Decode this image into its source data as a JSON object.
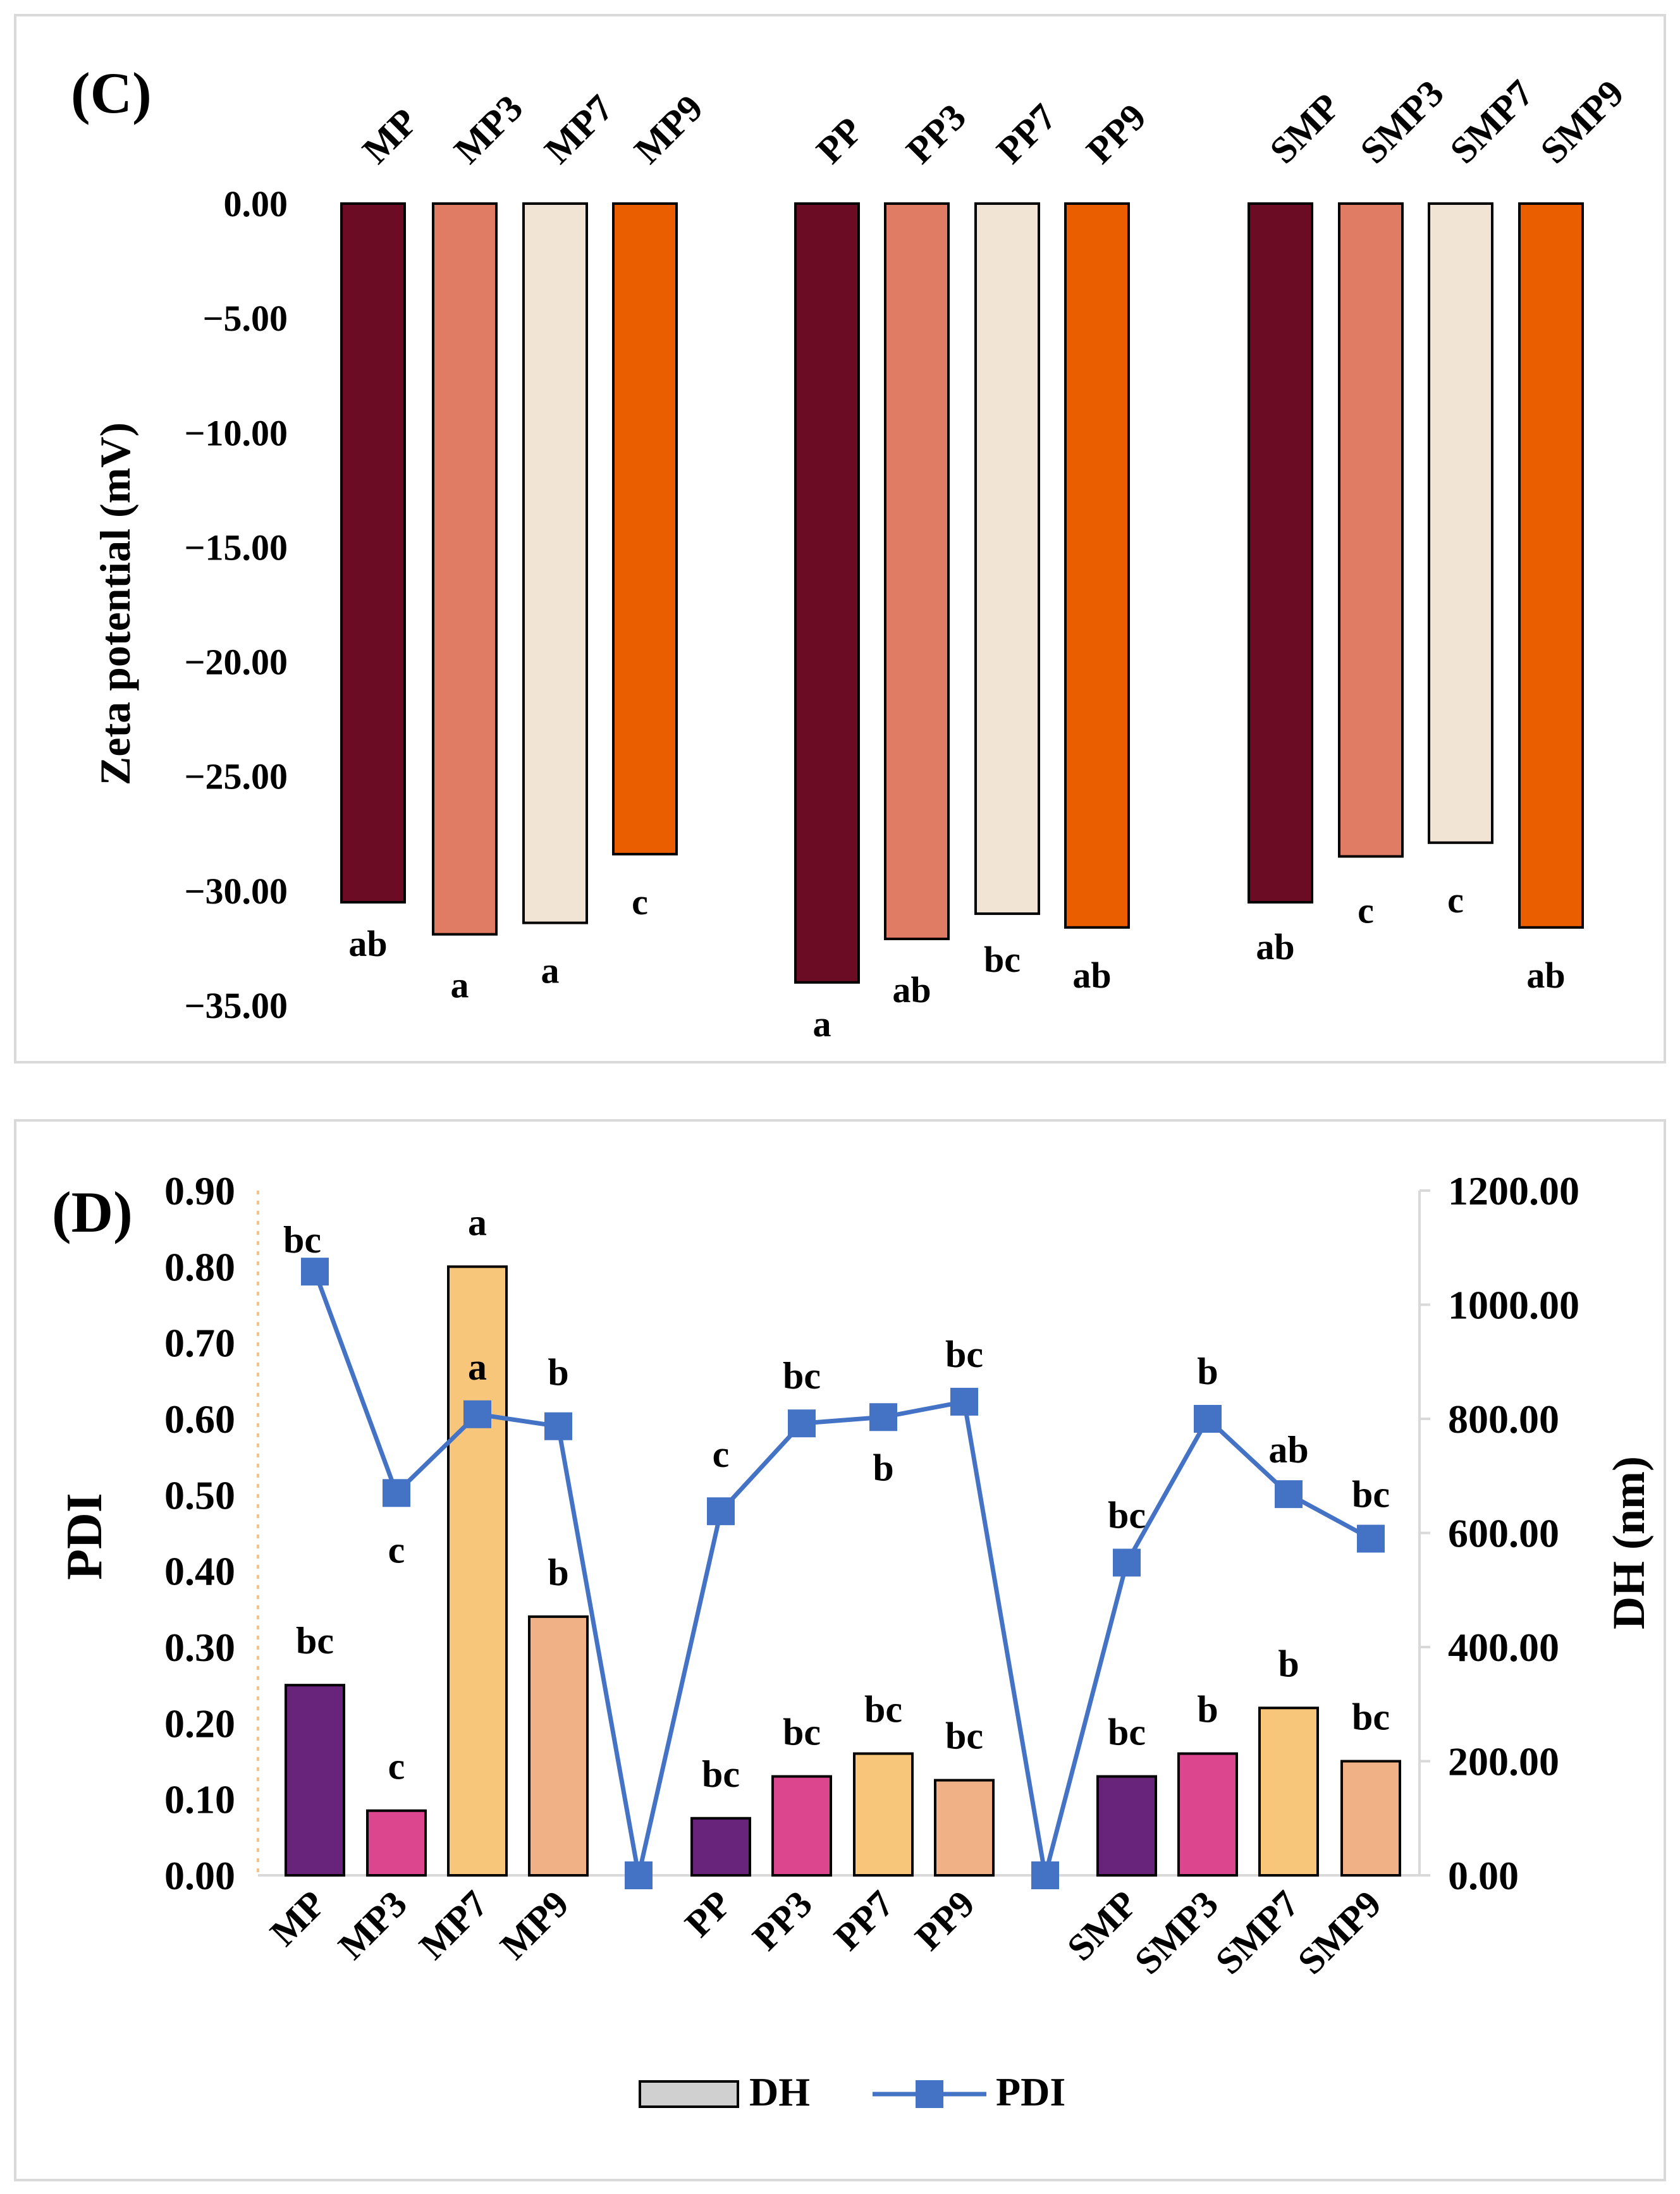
{
  "chart_data": [
    {
      "type": "bar",
      "panel_label": "(C)",
      "title": "",
      "xlabel": "",
      "ylabel": "Zeta potential (mV)",
      "ylim": [
        -35,
        0
      ],
      "yticks": [
        "0.00",
        "−5.00",
        "−10.00",
        "−15.00",
        "−20.00",
        "−25.00",
        "−30.00",
        "−35.00"
      ],
      "grid": false,
      "categories": [
        "MP",
        "MP3",
        "MP7",
        "MP9",
        "PP",
        "PP3",
        "PP7",
        "PP9",
        "SMP",
        "SMP3",
        "SMP7",
        "SMP9"
      ],
      "values": [
        -30.5,
        -31.9,
        -31.4,
        -28.4,
        -34.0,
        -32.1,
        -31.0,
        -31.6,
        -30.5,
        -28.5,
        -27.9,
        -31.6
      ],
      "letters": [
        "ab",
        "a",
        "a",
        "c",
        "a",
        "ab",
        "bc",
        "ab",
        "ab",
        "c",
        "c",
        "ab"
      ],
      "colors": [
        "#6b0c24",
        "#e07c63",
        "#f2e4d4",
        "#ea5e00",
        "#6b0c24",
        "#e07c63",
        "#f2e4d4",
        "#ea5e00",
        "#6b0c24",
        "#e07c63",
        "#f2e4d4",
        "#ea5e00"
      ]
    },
    {
      "type": "bar",
      "panel_label": "(D)",
      "title": "",
      "xlabel": "",
      "ylabel": "PDI",
      "ylabel_right": "DH (nm)",
      "ylim": [
        0,
        0.9
      ],
      "ylim_right": [
        0,
        1200
      ],
      "yticks": [
        "0.00",
        "0.10",
        "0.20",
        "0.30",
        "0.40",
        "0.50",
        "0.60",
        "0.70",
        "0.80",
        "0.90"
      ],
      "yticks_right": [
        "0.00",
        "200.00",
        "400.00",
        "600.00",
        "800.00",
        "1000.00",
        "1200.00"
      ],
      "grid": false,
      "legend_position": "bottom",
      "categories": [
        "MP",
        "MP3",
        "MP7",
        "MP9",
        "",
        "PP",
        "PP3",
        "PP7",
        "PP9",
        "",
        "SMP",
        "SMP3",
        "SMP7",
        "SMP9"
      ],
      "series": [
        {
          "name": "DH",
          "axis": "left",
          "values": [
            0.25,
            0.085,
            0.8,
            0.34,
            null,
            0.075,
            0.13,
            0.16,
            0.125,
            null,
            0.13,
            0.16,
            0.22,
            0.15
          ],
          "letters": [
            "bc",
            "c",
            "a",
            "b",
            "",
            "bc",
            "bc",
            "bc",
            "bc",
            "",
            "bc",
            "b",
            "b",
            "bc"
          ],
          "colors": [
            "#68237a",
            "#db468e",
            "#f7c67a",
            "#f1b186",
            "",
            "#68237a",
            "#db468e",
            "#f7c67a",
            "#f1b186",
            "",
            "#68237a",
            "#db468e",
            "#f7c67a",
            "#f1b186"
          ]
        },
        {
          "name": "PDI",
          "axis": "right",
          "values": [
            1058,
            670,
            808,
            787,
            0,
            638,
            792,
            803,
            830,
            0,
            548,
            800,
            668,
            590
          ],
          "letters": [
            "bc",
            "c",
            "a",
            "b",
            "",
            "c",
            "bc",
            "b",
            "bc",
            "",
            "bc",
            "b",
            "ab",
            "bc"
          ],
          "color": "#4472c4"
        }
      ]
    }
  ]
}
